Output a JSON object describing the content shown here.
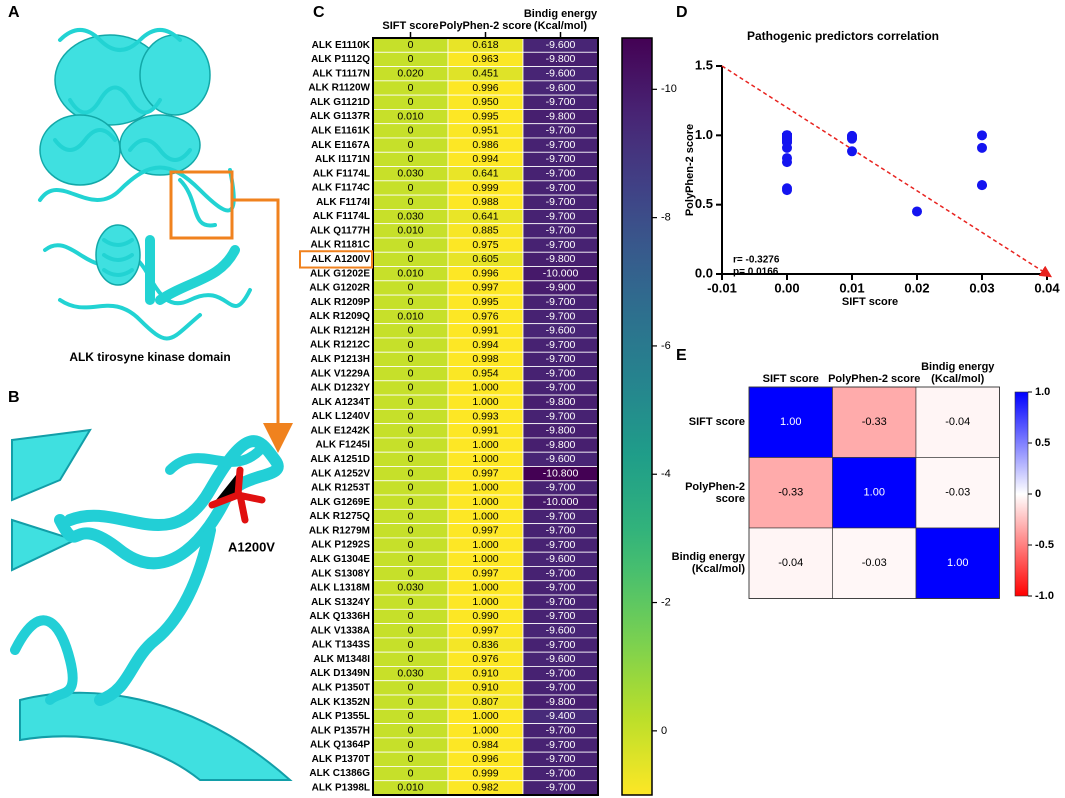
{
  "figure": {
    "panel_labels": [
      "A",
      "B",
      "C",
      "D",
      "E"
    ],
    "structure_caption": "ALK tirosyne kinase domain",
    "mutation_label": "A1200V"
  },
  "chart_data": [
    {
      "type": "heatmap_table",
      "categories": [
        "ALK E1110K",
        "ALK P1112Q",
        "ALK T1117N",
        "ALK R1120W",
        "ALK G1121D",
        "ALK G1137R",
        "ALK E1161K",
        "ALK E1167A",
        "ALK I1171N",
        "ALK F1174L",
        "ALK F1174C",
        "ALK F1174I",
        "ALK F1174L",
        "ALK Q1177H",
        "ALK R1181C",
        "ALK A1200V",
        "ALK G1202E",
        "ALK G1202R",
        "ALK R1209P",
        "ALK R1209Q",
        "ALK R1212H",
        "ALK R1212C",
        "ALK P1213H",
        "ALK V1229A",
        "ALK D1232Y",
        "ALK A1234T",
        "ALK L1240V",
        "ALK E1242K",
        "ALK F1245I",
        "ALK A1251D",
        "ALK A1252V",
        "ALK R1253T",
        "ALK G1269E",
        "ALK R1275Q",
        "ALK R1279M",
        "ALK P1292S",
        "ALK G1304E",
        "ALK S1308Y",
        "ALK L1318M",
        "ALK S1324Y",
        "ALK Q1336H",
        "ALK V1338A",
        "ALK T1343S",
        "ALK M1348I",
        "ALK D1349N",
        "ALK P1350T",
        "ALK K1352N",
        "ALK P1355L",
        "ALK P1357H",
        "ALK Q1364P",
        "ALK P1370T",
        "ALK C1386G",
        "ALK P1398L"
      ],
      "series": [
        {
          "name": "SIFT score",
          "values": [
            0,
            0,
            0.02,
            0,
            0,
            0.01,
            0,
            0,
            0,
            0.03,
            0,
            0,
            0.03,
            0.01,
            0,
            0,
            0.01,
            0,
            0,
            0.01,
            0,
            0,
            0,
            0,
            0,
            0,
            0,
            0,
            0,
            0,
            0,
            0,
            0,
            0,
            0,
            0,
            0,
            0,
            0.03,
            0,
            0,
            0,
            0,
            0,
            0.03,
            0,
            0,
            0,
            0,
            0,
            0,
            0,
            0.01
          ],
          "value_labels": [
            "0",
            "0",
            "0.020",
            "0",
            "0",
            "0.010",
            "0",
            "0",
            "0",
            "0.030",
            "0",
            "0",
            "0.030",
            "0.010",
            "0",
            "0",
            "0.010",
            "0",
            "0",
            "0.010",
            "0",
            "0",
            "0",
            "0",
            "0",
            "0",
            "0",
            "0",
            "0",
            "0",
            "0",
            "0",
            "0",
            "0",
            "0",
            "0",
            "0",
            "0",
            "0.030",
            "0",
            "0",
            "0",
            "0",
            "0",
            "0.030",
            "0",
            "0",
            "0",
            "0",
            "0",
            "0",
            "0",
            "0.010"
          ]
        },
        {
          "name": "PolyPhen-2 score",
          "values": [
            0.618,
            0.963,
            0.451,
            0.996,
            0.95,
            0.995,
            0.951,
            0.986,
            0.994,
            0.641,
            0.999,
            0.988,
            0.641,
            0.885,
            0.975,
            0.605,
            0.996,
            0.997,
            0.995,
            0.976,
            0.991,
            0.994,
            0.998,
            0.954,
            1,
            1,
            0.993,
            0.991,
            1,
            1,
            0.997,
            1,
            1,
            1,
            0.997,
            1,
            1,
            0.997,
            1,
            1,
            0.99,
            0.997,
            0.836,
            0.976,
            0.91,
            0.91,
            0.807,
            1,
            1,
            0.984,
            0.996,
            0.999,
            0.982
          ],
          "value_labels": [
            "0.618",
            "0.963",
            "0.451",
            "0.996",
            "0.950",
            "0.995",
            "0.951",
            "0.986",
            "0.994",
            "0.641",
            "0.999",
            "0.988",
            "0.641",
            "0.885",
            "0.975",
            "0.605",
            "0.996",
            "0.997",
            "0.995",
            "0.976",
            "0.991",
            "0.994",
            "0.998",
            "0.954",
            "1.000",
            "1.000",
            "0.993",
            "0.991",
            "1.000",
            "1.000",
            "0.997",
            "1.000",
            "1.000",
            "1.000",
            "0.997",
            "1.000",
            "1.000",
            "0.997",
            "1.000",
            "1.000",
            "0.990",
            "0.997",
            "0.836",
            "0.976",
            "0.910",
            "0.910",
            "0.807",
            "1.000",
            "1.000",
            "0.984",
            "0.996",
            "0.999",
            "0.982"
          ]
        },
        {
          "name": "Bindig energy (Kcal/mol)",
          "values": [
            -9.6,
            -9.8,
            -9.6,
            -9.6,
            -9.7,
            -9.8,
            -9.7,
            -9.7,
            -9.7,
            -9.7,
            -9.7,
            -9.7,
            -9.7,
            -9.7,
            -9.7,
            -9.8,
            -10,
            -9.9,
            -9.7,
            -9.7,
            -9.6,
            -9.7,
            -9.7,
            -9.7,
            -9.7,
            -9.8,
            -9.7,
            -9.8,
            -9.8,
            -9.6,
            -10.8,
            -9.7,
            -10,
            -9.7,
            -9.7,
            -9.7,
            -9.6,
            -9.7,
            -9.7,
            -9.7,
            -9.7,
            -9.6,
            -9.7,
            -9.6,
            -9.7,
            -9.7,
            -9.8,
            -9.4,
            -9.7,
            -9.7,
            -9.7,
            -9.7,
            -9.7
          ],
          "value_labels": [
            "-9.600",
            "-9.800",
            "-9.600",
            "-9.600",
            "-9.700",
            "-9.800",
            "-9.700",
            "-9.700",
            "-9.700",
            "-9.700",
            "-9.700",
            "-9.700",
            "-9.700",
            "-9.700",
            "-9.700",
            "-9.800",
            "-10.000",
            "-9.900",
            "-9.700",
            "-9.700",
            "-9.600",
            "-9.700",
            "-9.700",
            "-9.700",
            "-9.700",
            "-9.800",
            "-9.700",
            "-9.800",
            "-9.800",
            "-9.600",
            "-10.800",
            "-9.700",
            "-10.000",
            "-9.700",
            "-9.700",
            "-9.700",
            "-9.600",
            "-9.700",
            "-9.700",
            "-9.700",
            "-9.700",
            "-9.600",
            "-9.700",
            "-9.600",
            "-9.700",
            "-9.700",
            "-9.800",
            "-9.400",
            "-9.700",
            "-9.700",
            "-9.700",
            "-9.700",
            "-9.700"
          ]
        }
      ],
      "colormap": "viridis",
      "colorbar": {
        "lim": [
          -10.8,
          1.0
        ],
        "ticks": [
          0,
          -2,
          -4,
          -6,
          -8,
          -10
        ]
      },
      "highlight": {
        "category": 15,
        "color": "#f0821e"
      }
    },
    {
      "type": "scatter",
      "title": "Pathogenic predictors correlation",
      "x_label": "SIFT score",
      "y_label": "PolyPhen-2 score",
      "x": [
        0,
        0,
        0.02,
        0,
        0,
        0.01,
        0,
        0,
        0,
        0.03,
        0,
        0,
        0.03,
        0.01,
        0,
        0,
        0.01,
        0,
        0,
        0.01,
        0,
        0,
        0,
        0,
        0,
        0,
        0,
        0,
        0,
        0,
        0,
        0,
        0,
        0,
        0,
        0,
        0,
        0,
        0.03,
        0,
        0,
        0,
        0,
        0,
        0.03,
        0,
        0,
        0,
        0,
        0,
        0,
        0,
        0.01
      ],
      "series": [
        {
          "color": "#1414f0",
          "values": [
            0.618,
            0.963,
            0.451,
            0.996,
            0.95,
            0.995,
            0.951,
            0.986,
            0.994,
            0.641,
            0.999,
            0.988,
            0.641,
            0.885,
            0.975,
            0.605,
            0.996,
            0.997,
            0.995,
            0.976,
            0.991,
            0.994,
            0.998,
            0.954,
            1,
            1,
            0.993,
            0.991,
            1,
            1,
            0.997,
            1,
            1,
            1,
            0.997,
            1,
            1,
            0.997,
            1,
            1,
            0.99,
            0.997,
            0.836,
            0.976,
            0.91,
            0.91,
            0.807,
            1,
            1,
            0.984,
            0.996,
            0.999,
            0.982
          ]
        }
      ],
      "xlim": [
        -0.01,
        0.04
      ],
      "ylim": [
        0,
        1.5
      ],
      "xticks": [
        -0.01,
        {
          "value": 0,
          "label": "0.00"
        },
        0.01,
        0.02,
        0.03,
        0.04
      ],
      "yticks": [
        {
          "value": 0,
          "label": "0.0"
        },
        0.5,
        {
          "value": 1,
          "label": "1.0"
        },
        1.5
      ],
      "annotations": [
        "r= -0.3276",
        "p= 0.0166"
      ],
      "trendline": {
        "x": [
          -0.01,
          0.04
        ],
        "y": [
          1.5,
          0
        ],
        "color": "#e8231f",
        "dashed": true
      }
    },
    {
      "type": "correlation_heatmap",
      "categories": [
        "SIFT score",
        "PolyPhen-2 score",
        "Bindig energy (Kcal/mol)"
      ],
      "values": [
        [
          1,
          -0.33,
          -0.04
        ],
        [
          -0.33,
          1,
          -0.03
        ],
        [
          -0.04,
          -0.03,
          1
        ]
      ],
      "value_labels": [
        [
          "1.00",
          "-0.33",
          "-0.04"
        ],
        [
          "-0.33",
          "1.00",
          "-0.03"
        ],
        [
          "-0.04",
          "-0.03",
          "1.00"
        ]
      ],
      "colormap": "red-white-blue",
      "colorbar": {
        "lim": [
          -1,
          1
        ],
        "ticks": [
          {
            "value": 1,
            "label": "1.0"
          },
          0.5,
          0,
          -0.5,
          {
            "value": -1,
            "label": "-1.0"
          }
        ]
      }
    }
  ]
}
